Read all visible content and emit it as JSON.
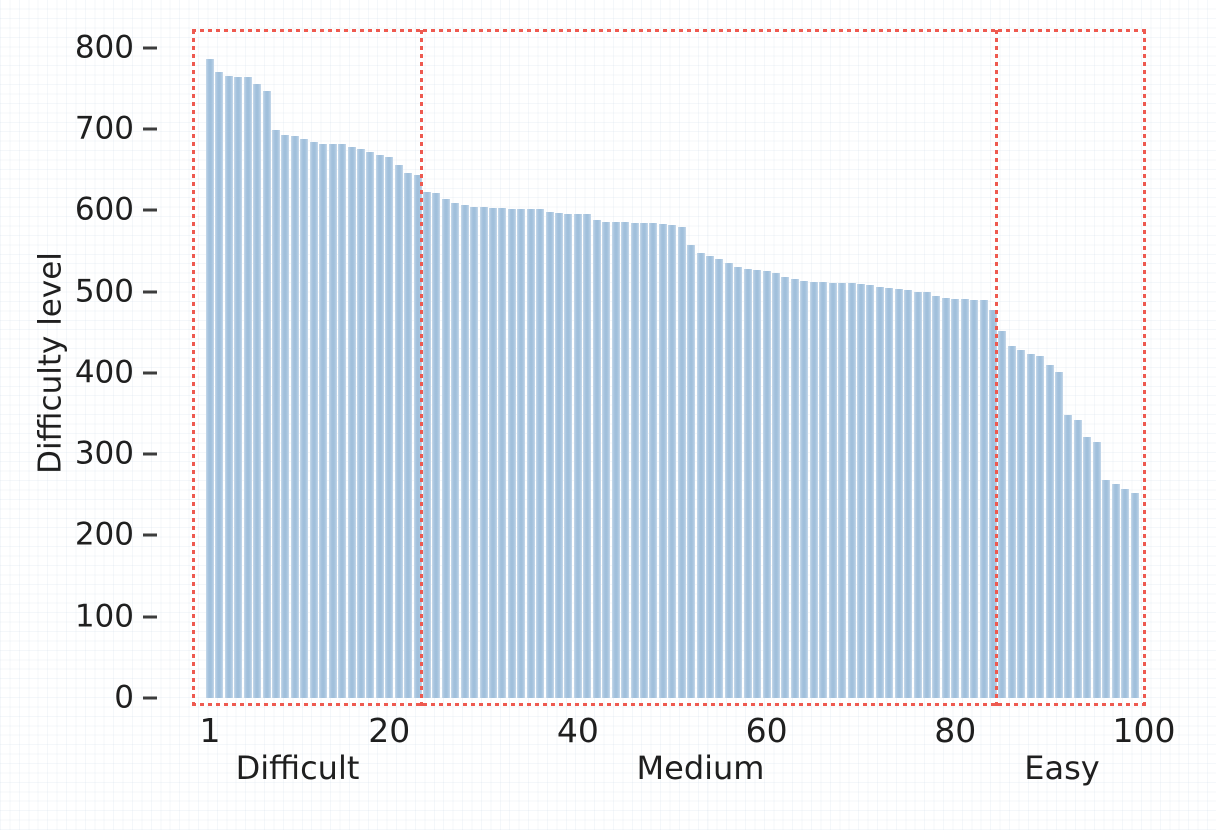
{
  "chart_data": {
    "type": "bar",
    "title": "",
    "xlabel": "",
    "ylabel": "Difficulty level",
    "ylim": [
      0,
      822
    ],
    "yticks": [
      0,
      100,
      200,
      300,
      400,
      500,
      600,
      700,
      800
    ],
    "xticks": [
      1,
      20,
      40,
      60,
      80,
      100
    ],
    "grid": false,
    "legend": null,
    "bar_color": "#a4c2dc",
    "region_border_color": "#ee5a50",
    "tick_text_color": "#1f1f1f",
    "x": [
      1,
      2,
      3,
      4,
      5,
      6,
      7,
      8,
      9,
      10,
      11,
      12,
      13,
      14,
      15,
      16,
      17,
      18,
      19,
      20,
      21,
      22,
      23,
      24,
      25,
      26,
      27,
      28,
      29,
      30,
      31,
      32,
      33,
      34,
      35,
      36,
      37,
      38,
      39,
      40,
      41,
      42,
      43,
      44,
      45,
      46,
      47,
      48,
      49,
      50,
      51,
      52,
      53,
      54,
      55,
      56,
      57,
      58,
      59,
      60,
      61,
      62,
      63,
      64,
      65,
      66,
      67,
      68,
      69,
      70,
      71,
      72,
      73,
      74,
      75,
      76,
      77,
      78,
      79,
      80,
      81,
      82,
      83,
      84,
      85,
      86,
      87,
      88,
      89,
      90,
      91,
      92,
      93,
      94,
      95,
      96,
      97,
      98,
      99
    ],
    "values": [
      786,
      770,
      765,
      764,
      764,
      755,
      747,
      699,
      693,
      691,
      688,
      684,
      682,
      682,
      681,
      678,
      675,
      672,
      668,
      665,
      656,
      646,
      643,
      623,
      621,
      614,
      609,
      607,
      604,
      604,
      603,
      603,
      602,
      602,
      602,
      601,
      598,
      597,
      596,
      596,
      595,
      588,
      586,
      585,
      585,
      584,
      584,
      584,
      583,
      582,
      580,
      557,
      548,
      544,
      540,
      535,
      530,
      528,
      526,
      525,
      523,
      518,
      515,
      513,
      512,
      512,
      511,
      511,
      510,
      509,
      508,
      506,
      504,
      503,
      502,
      500,
      499,
      494,
      492,
      491,
      491,
      490,
      489,
      477,
      451,
      433,
      428,
      423,
      421,
      410,
      401,
      348,
      342,
      321,
      315,
      268,
      263,
      257,
      252
    ],
    "regions": [
      {
        "label": "Difficult",
        "bars": [
          1,
          23
        ]
      },
      {
        "label": "Medium",
        "bars": [
          24,
          84
        ]
      },
      {
        "label": "Easy",
        "bars": [
          85,
          99
        ]
      }
    ]
  }
}
